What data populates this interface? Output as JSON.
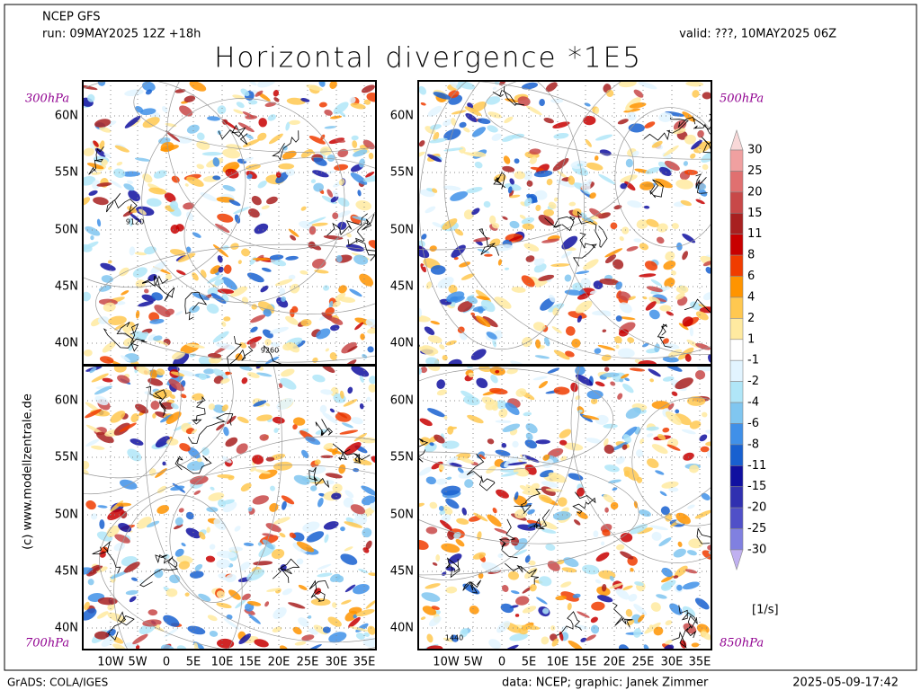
{
  "header": {
    "model": "NCEP GFS",
    "run": "run: 09MAY2025 12Z +18h",
    "valid": "valid: ???, 10MAY2025 06Z",
    "title": "Horizontal divergence *1E5"
  },
  "panels": [
    {
      "level": "300hPa",
      "contours": [
        "9120",
        "9260"
      ]
    },
    {
      "level": "500hPa"
    },
    {
      "level": "700hPa"
    },
    {
      "level": "850hPa",
      "contours": [
        "1440"
      ]
    }
  ],
  "lat_labels": [
    "60N",
    "55N",
    "50N",
    "45N",
    "40N"
  ],
  "lon_labels": [
    "10W",
    "5W",
    "0",
    "5E",
    "10E",
    "15E",
    "20E",
    "25E",
    "30E",
    "35E"
  ],
  "colorbar": {
    "levels": [
      30,
      25,
      20,
      15,
      11,
      8,
      6,
      4,
      2,
      1,
      -1,
      -2,
      -4,
      -6,
      -8,
      -11,
      -15,
      -20,
      -25,
      -30
    ],
    "colors": [
      "#f8d8d8",
      "#f0a0a0",
      "#e07070",
      "#c84848",
      "#a82020",
      "#c80000",
      "#f03c00",
      "#ff9400",
      "#ffc850",
      "#ffeaa0",
      "#ffffff",
      "#e2f4ff",
      "#b0e6f8",
      "#80c6f0",
      "#4090e8",
      "#1860d0",
      "#1010a0",
      "#3030b0",
      "#5050c8",
      "#8080e0",
      "#c0b0f0"
    ],
    "unit": "[1/s]"
  },
  "credit": "(c) www.modellzentrale.de",
  "footer": {
    "left": "GrADS: COLA/IGES",
    "data": "data: NCEP; graphic: Janek Zimmer",
    "timestamp": "2025-05-09-17:42"
  }
}
